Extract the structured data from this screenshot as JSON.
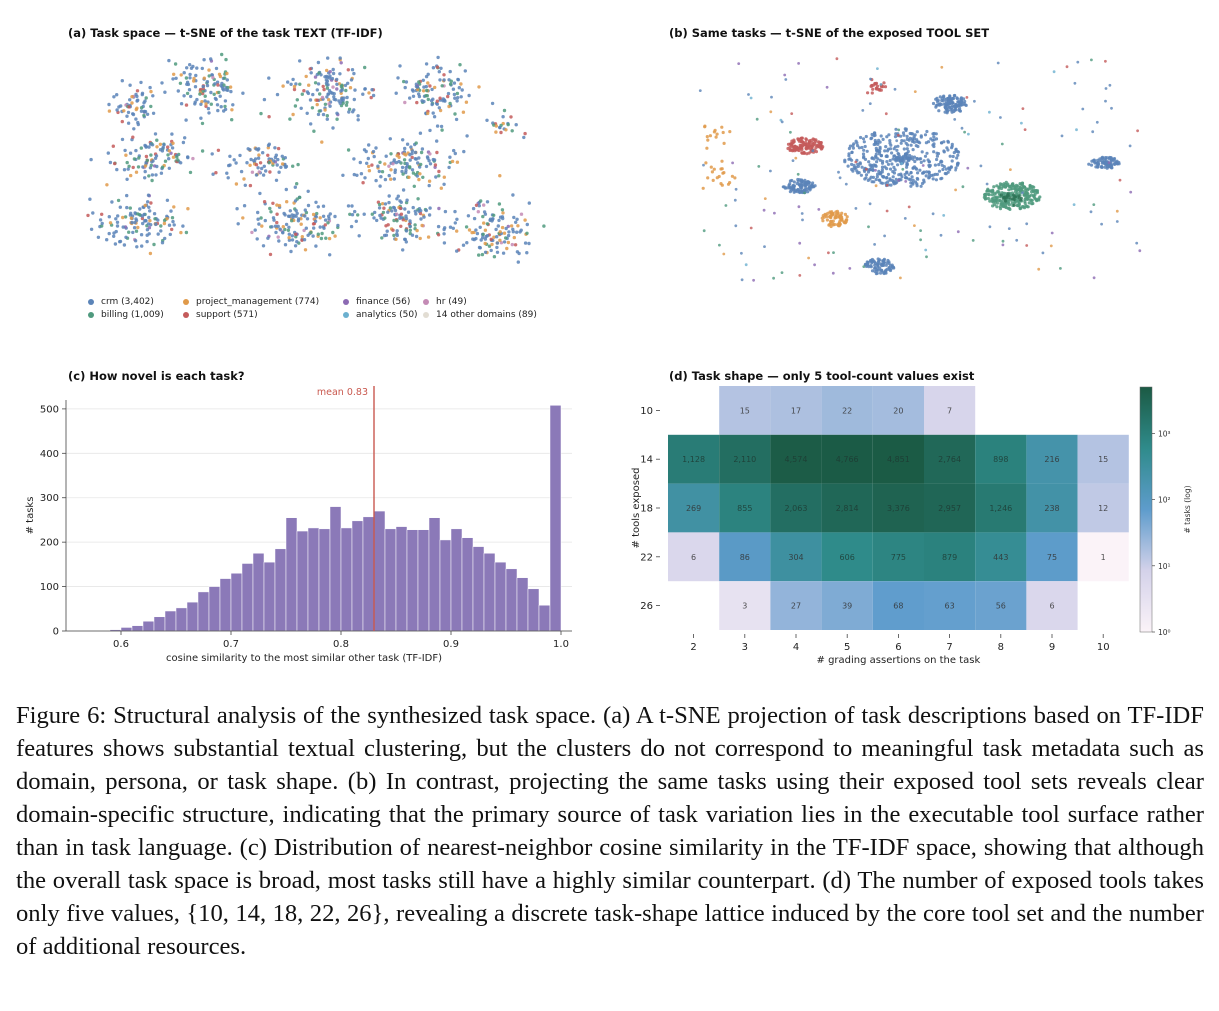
{
  "panel_a": {
    "title": "(a)  Task space — t-SNE of the task TEXT (TF-IDF)",
    "legend": [
      {
        "label": "crm (3,402)",
        "color": "#5b84b8"
      },
      {
        "label": "project_management (774)",
        "color": "#e09a4a"
      },
      {
        "label": "finance (56)",
        "color": "#8c6ab3"
      },
      {
        "label": "hr (49)",
        "color": "#c48bb5"
      },
      {
        "label": "billing (1,009)",
        "color": "#4f9a7e"
      },
      {
        "label": "support (571)",
        "color": "#c45b5b"
      },
      {
        "label": "analytics (50)",
        "color": "#6bb0cf"
      },
      {
        "label": "14 other domains (89)",
        "color": "#e2ddd3"
      }
    ]
  },
  "panel_b": {
    "title": "(b)  Same tasks — t-SNE of the exposed TOOL SET"
  },
  "panel_c": {
    "title": "(c)  How novel is each task?",
    "mean_label": "mean 0.83",
    "chart_data": {
      "type": "bar",
      "title": "(c)  How novel is each task?",
      "xlabel": "cosine similarity to the most similar other task (TF-IDF)",
      "ylabel": "# tasks",
      "xlim": [
        0.55,
        1.01
      ],
      "ylim": [
        0,
        520
      ],
      "xticks": [
        "0.6",
        "0.7",
        "0.8",
        "0.9",
        "1.0"
      ],
      "yticks": [
        "0",
        "100",
        "200",
        "300",
        "400",
        "500"
      ],
      "bin_width": 0.01,
      "bin_starts": [
        0.59,
        0.6,
        0.61,
        0.62,
        0.63,
        0.64,
        0.65,
        0.66,
        0.67,
        0.68,
        0.69,
        0.7,
        0.71,
        0.72,
        0.73,
        0.74,
        0.75,
        0.76,
        0.77,
        0.78,
        0.79,
        0.8,
        0.81,
        0.82,
        0.83,
        0.84,
        0.85,
        0.86,
        0.87,
        0.88,
        0.89,
        0.9,
        0.91,
        0.92,
        0.93,
        0.94,
        0.95,
        0.96,
        0.97,
        0.98,
        0.99
      ],
      "values": [
        3,
        8,
        12,
        22,
        32,
        45,
        52,
        65,
        88,
        100,
        118,
        130,
        152,
        175,
        155,
        185,
        255,
        225,
        232,
        230,
        280,
        232,
        248,
        257,
        270,
        230,
        235,
        228,
        228,
        255,
        205,
        230,
        210,
        190,
        175,
        155,
        140,
        120,
        95,
        58,
        508
      ],
      "mean": 0.83,
      "mean_color": "#c9594f",
      "bar_color": "#8b79b8"
    }
  },
  "panel_d": {
    "title": "(d)  Task shape — only 5 tool-count values exist",
    "chart_data": {
      "type": "heatmap",
      "title": "(d)  Task shape — only 5 tool-count values exist",
      "xlabel": "# grading assertions on the task",
      "ylabel": "# tools exposed",
      "colorbar_label": "# tasks (log)",
      "colorbar_ticks": [
        "10⁰",
        "10¹",
        "10²",
        "10³"
      ],
      "x": [
        2,
        3,
        4,
        5,
        6,
        7,
        8,
        9,
        10
      ],
      "y": [
        10,
        14,
        18,
        22,
        26
      ],
      "cells": [
        [
          null,
          15,
          17,
          22,
          20,
          7,
          null,
          null,
          null
        ],
        [
          1128,
          2110,
          4574,
          4766,
          4851,
          2764,
          898,
          216,
          15
        ],
        [
          269,
          855,
          2063,
          2814,
          3376,
          2957,
          1246,
          238,
          12
        ],
        [
          6,
          86,
          304,
          606,
          775,
          879,
          443,
          75,
          1
        ],
        [
          null,
          3,
          27,
          39,
          68,
          63,
          56,
          6,
          null
        ]
      ],
      "cell_labels": [
        [
          "",
          "15",
          "17",
          "22",
          "20",
          "7",
          "",
          "",
          ""
        ],
        [
          "1,128",
          "2,110",
          "4,574",
          "4,766",
          "4,851",
          "2,764",
          "898",
          "216",
          "15"
        ],
        [
          "269",
          "855",
          "2,063",
          "2,814",
          "3,376",
          "2,957",
          "1,246",
          "238",
          "12"
        ],
        [
          "6",
          "86",
          "304",
          "606",
          "775",
          "879",
          "443",
          "75",
          "1"
        ],
        [
          "",
          "3",
          "27",
          "39",
          "68",
          "63",
          "56",
          "6",
          ""
        ]
      ],
      "colorscale": [
        "#fbf3f8",
        "#d4d2ea",
        "#5e9ccc",
        "#2f8b8b",
        "#1b5a44"
      ]
    }
  },
  "caption": {
    "text": "Figure 6:  Structural analysis of the synthesized task space.  (a) A t-SNE projection of task descriptions based on TF-IDF features shows substantial textual clustering, but the clusters do not correspond to meaningful task metadata such as domain, persona, or task shape.  (b) In contrast, projecting the same tasks using their exposed tool sets reveals clear domain-specific structure, indicating that the primary source of task variation lies in the executable tool surface rather than in task language.  (c) Distribution of nearest-neighbor cosine similarity in the TF-IDF space, showing that although the overall task space is broad, most tasks still have a highly similar counterpart.  (d) The number of exposed tools takes only five values, {10, 14, 18, 22, 26}, revealing a discrete task-shape lattice induced by the core tool set and the number of additional resources."
  }
}
